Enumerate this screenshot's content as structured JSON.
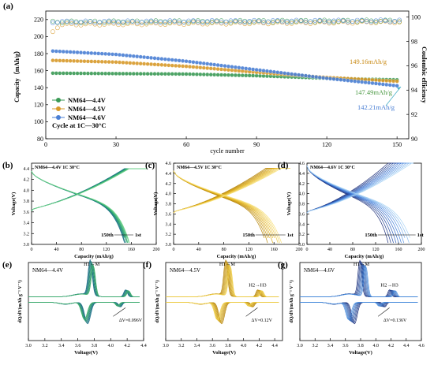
{
  "chart_data": [
    {
      "panel": "(a)",
      "type": "scatter",
      "xlabel": "cycle number",
      "ylabel": "Capacity（mAh/g）",
      "y2label": "Coulombic efficiency",
      "xlim": [
        0,
        155
      ],
      "ylim": [
        80,
        230
      ],
      "y2lim": [
        90,
        100.5
      ],
      "xticks": [
        "0",
        "30",
        "60",
        "90",
        "120",
        "150"
      ],
      "yticks": [
        "80",
        "100",
        "120",
        "140",
        "160",
        "180",
        "200",
        "220"
      ],
      "y2ticks": [
        "90",
        "92",
        "94",
        "96",
        "98",
        "100"
      ],
      "legend": [
        "NM64—4.4V",
        "NM64—4.5V",
        "NM64—4.6V"
      ],
      "legend_note": "Cycle at 1C—30°C",
      "annotations": [
        "149.16mAh/g",
        "147.49mAh/g",
        "142.21mAh/g"
      ],
      "series": [
        {
          "name": "NM64—4.4V",
          "color": "#3a9a55",
          "capacity": [
            [
              3,
              157
            ],
            [
              30,
              156.5
            ],
            [
              60,
              156
            ],
            [
              90,
              154
            ],
            [
              120,
              151
            ],
            [
              150,
              149.16
            ]
          ]
        },
        {
          "name": "NM64—4.5V",
          "color": "#d89a2a",
          "capacity": [
            [
              3,
              172
            ],
            [
              30,
              170
            ],
            [
              60,
              165
            ],
            [
              90,
              158
            ],
            [
              120,
              152
            ],
            [
              150,
              147.49
            ]
          ]
        },
        {
          "name": "NM64—4.6V",
          "color": "#4a7fd4",
          "capacity": [
            [
              3,
              183
            ],
            [
              30,
              179
            ],
            [
              60,
              171
            ],
            [
              90,
              161
            ],
            [
              120,
              151
            ],
            [
              150,
              142.21
            ]
          ]
        }
      ],
      "efficiency": [
        {
          "name": "NM64—4.4V",
          "values": [
            [
              3,
              99.6
            ],
            [
              150,
              99.7
            ]
          ]
        },
        {
          "name": "NM64—4.5V",
          "values": [
            [
              3,
              98.8
            ],
            [
              6,
              99.4
            ],
            [
              150,
              99.6
            ]
          ]
        },
        {
          "name": "NM64—4.6V",
          "values": [
            [
              3,
              99.6
            ],
            [
              150,
              99.7
            ]
          ]
        }
      ]
    },
    {
      "panel": "(b)",
      "type": "line",
      "title": "NM64—4.4V  1C  30°C",
      "xlabel": "Capacity  (mAh/g)",
      "ylabel": "Voltage(V)",
      "xlim": [
        0,
        200
      ],
      "ylim": [
        3.0,
        4.5
      ],
      "xticks": [
        "0",
        "40",
        "80",
        "120",
        "160",
        "200"
      ],
      "yticks": [
        "3.0",
        "3.2",
        "3.4",
        "3.6",
        "3.8",
        "4.0",
        "4.2",
        "4.4"
      ],
      "annotations": [
        "150th",
        "1st"
      ],
      "cutoff_voltage": 4.4,
      "discharge_capacity_range": [
        149,
        157
      ],
      "colors": [
        "#1f6e8c",
        "#27a36e",
        "#6fd38a"
      ]
    },
    {
      "panel": "(c)",
      "type": "line",
      "title": "NM64—4.5V  1C  30°C",
      "xlabel": "Capacity  (mAh/g)",
      "ylabel": "Voltage(V)",
      "xlim": [
        0,
        200
      ],
      "ylim": [
        3.0,
        4.6
      ],
      "xticks": [
        "0",
        "40",
        "80",
        "120",
        "160",
        "200"
      ],
      "yticks": [
        "3.0",
        "3.2",
        "3.4",
        "3.6",
        "3.8",
        "4.0",
        "4.2",
        "4.4",
        "4.6"
      ],
      "annotations": [
        "150th",
        "1st"
      ],
      "cutoff_voltage": 4.5,
      "discharge_capacity_range": [
        147,
        172
      ],
      "colors": [
        "#b8860b",
        "#e2b21c",
        "#f7e07a"
      ]
    },
    {
      "panel": "(d)",
      "type": "line",
      "title": "NM64—4.6V  1C  30°C",
      "xlabel": "Capacity  (mAh/g)",
      "ylabel": "Voltage(V)",
      "xlim": [
        0,
        200
      ],
      "ylim": [
        3.0,
        4.6
      ],
      "xticks": [
        "0",
        "40",
        "80",
        "120",
        "160",
        "200"
      ],
      "yticks": [
        "3.0",
        "3.2",
        "3.4",
        "3.6",
        "3.8",
        "4.0",
        "4.2",
        "4.4",
        "4.6"
      ],
      "annotations": [
        "150th",
        "1st"
      ],
      "cutoff_voltage": 4.6,
      "discharge_capacity_range": [
        142,
        183
      ],
      "colors": [
        "#1c2f7a",
        "#3a78d8",
        "#a9d4f5"
      ]
    },
    {
      "panel": "(e)",
      "type": "line",
      "title": "NM64—4.4V",
      "xlabel": "Voltage(V)",
      "ylabel": "dQ/dV(mAh g⁻¹ V⁻¹)",
      "xlim": [
        3.0,
        4.4
      ],
      "xticks": [
        "3.0",
        "3.2",
        "3.4",
        "3.6",
        "3.8",
        "4.0",
        "4.2",
        "4.4"
      ],
      "annotations": [
        "H1→M",
        "ΔV=0.096V"
      ],
      "colors": [
        "#1f6e8c",
        "#3fae6d"
      ]
    },
    {
      "panel": "(f)",
      "type": "line",
      "title": "NM64—4.5V",
      "xlabel": "Voltage(V)",
      "ylabel": "dQ/dV(mAh g⁻¹ V⁻¹)",
      "xlim": [
        3.0,
        4.5
      ],
      "xticks": [
        "3.0",
        "3.2",
        "3.4",
        "3.6",
        "3.8",
        "4.0",
        "4.2",
        "4.4"
      ],
      "annotations": [
        "H1→M",
        "H2→H3",
        "ΔV=0.12V"
      ],
      "colors": [
        "#b8860b",
        "#f0cf4a"
      ]
    },
    {
      "panel": "(g)",
      "type": "line",
      "title": "NM64—4.6V",
      "xlabel": "Voltage(V)",
      "ylabel": "dQ/dV(mAh g⁻¹ V⁻¹)",
      "xlim": [
        3.0,
        4.6
      ],
      "xticks": [
        "3.0",
        "3.2",
        "3.4",
        "3.6",
        "3.8",
        "4.0",
        "4.2",
        "4.4",
        "4.6"
      ],
      "annotations": [
        "H1→M",
        "H2→H3",
        "ΔV=0.136V"
      ],
      "colors": [
        "#1c2f7a",
        "#4a8fe0"
      ]
    }
  ]
}
